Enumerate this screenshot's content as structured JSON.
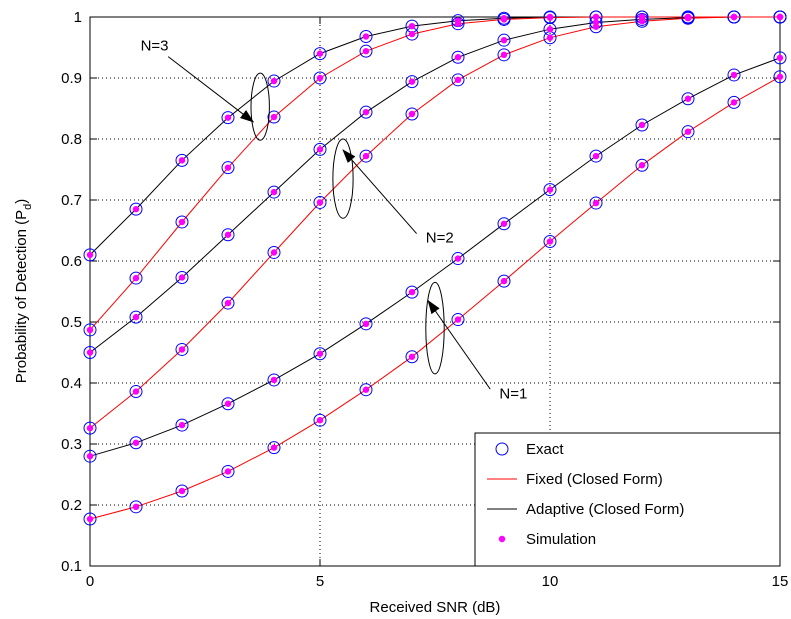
{
  "chart_data": {
    "type": "line",
    "xlabel": "Received SNR (dB)",
    "ylabel_main": "Probability of Detection (P",
    "ylabel_sub": "d",
    "ylabel_close": ")",
    "xlim": [
      0,
      15
    ],
    "ylim": [
      0.1,
      1
    ],
    "xticks": [
      0,
      5,
      10,
      15
    ],
    "yticks": [
      0.1,
      0.2,
      0.3,
      0.4,
      0.5,
      0.6,
      0.7,
      0.8,
      0.9,
      1
    ],
    "ytick_labels": [
      "0.1",
      "0.2",
      "0.3",
      "0.4",
      "0.5",
      "0.6",
      "0.7",
      "0.8",
      "0.9",
      "1"
    ],
    "grid": true,
    "legend_position": "bottom-right",
    "colors": {
      "fixed": "#ff0000",
      "adaptive": "#000000",
      "exact": "#0000ff",
      "simulation": "#ff00ff"
    },
    "legend": [
      {
        "label": "Exact",
        "kind": "exact"
      },
      {
        "label": "Fixed (Closed Form)",
        "kind": "fixed"
      },
      {
        "label": "Adaptive (Closed Form)",
        "kind": "adaptive"
      },
      {
        "label": "Simulation",
        "kind": "simulation"
      }
    ],
    "x": [
      0,
      1,
      2,
      3,
      4,
      5,
      6,
      7,
      8,
      9,
      10,
      11,
      12,
      13,
      14,
      15
    ],
    "series": [
      {
        "group": "N=1",
        "kind": "adaptive",
        "values": [
          0.28,
          0.302,
          0.331,
          0.366,
          0.405,
          0.448,
          0.497,
          0.549,
          0.604,
          0.661,
          0.717,
          0.772,
          0.823,
          0.866,
          0.905,
          0.933
        ]
      },
      {
        "group": "N=1",
        "kind": "fixed",
        "values": [
          0.177,
          0.197,
          0.223,
          0.255,
          0.294,
          0.339,
          0.389,
          0.443,
          0.504,
          0.567,
          0.632,
          0.695,
          0.757,
          0.812,
          0.86,
          0.902
        ]
      },
      {
        "group": "N=2",
        "kind": "adaptive",
        "values": [
          0.45,
          0.508,
          0.573,
          0.643,
          0.713,
          0.783,
          0.844,
          0.894,
          0.934,
          0.962,
          0.98,
          0.991,
          0.996,
          0.999,
          1.0,
          1.0
        ]
      },
      {
        "group": "N=2",
        "kind": "fixed",
        "values": [
          0.326,
          0.386,
          0.455,
          0.531,
          0.614,
          0.696,
          0.772,
          0.841,
          0.897,
          0.938,
          0.966,
          0.984,
          0.993,
          0.998,
          1.0,
          1.0
        ]
      },
      {
        "group": "N=3",
        "kind": "adaptive",
        "values": [
          0.61,
          0.685,
          0.765,
          0.835,
          0.895,
          0.94,
          0.968,
          0.985,
          0.994,
          0.998,
          1.0,
          1.0,
          1.0,
          1.0,
          1.0,
          1.0
        ]
      },
      {
        "group": "N=3",
        "kind": "fixed",
        "values": [
          0.487,
          0.572,
          0.664,
          0.753,
          0.836,
          0.9,
          0.944,
          0.972,
          0.989,
          0.996,
          0.999,
          1.0,
          1.0,
          1.0,
          1.0,
          1.0
        ]
      }
    ],
    "annotations": [
      {
        "text": "N=3",
        "ellipse_center": [
          3.7,
          0.853
        ],
        "ellipse_half_width": 0.2,
        "ellipse_half_height": 0.055,
        "arrow_from": [
          1.7,
          0.935
        ],
        "arrow_to": [
          3.55,
          0.828
        ],
        "text_at": [
          1.1,
          0.945
        ]
      },
      {
        "text": "N=2",
        "ellipse_center": [
          5.5,
          0.735
        ],
        "ellipse_half_width": 0.22,
        "ellipse_half_height": 0.065,
        "arrow_from": [
          7.1,
          0.645
        ],
        "arrow_to": [
          5.5,
          0.782
        ],
        "text_at": [
          7.3,
          0.63
        ]
      },
      {
        "text": "N=1",
        "ellipse_center": [
          7.5,
          0.49
        ],
        "ellipse_half_width": 0.2,
        "ellipse_half_height": 0.075,
        "arrow_from": [
          8.7,
          0.39
        ],
        "arrow_to": [
          7.35,
          0.535
        ],
        "text_at": [
          8.9,
          0.375
        ]
      }
    ]
  }
}
